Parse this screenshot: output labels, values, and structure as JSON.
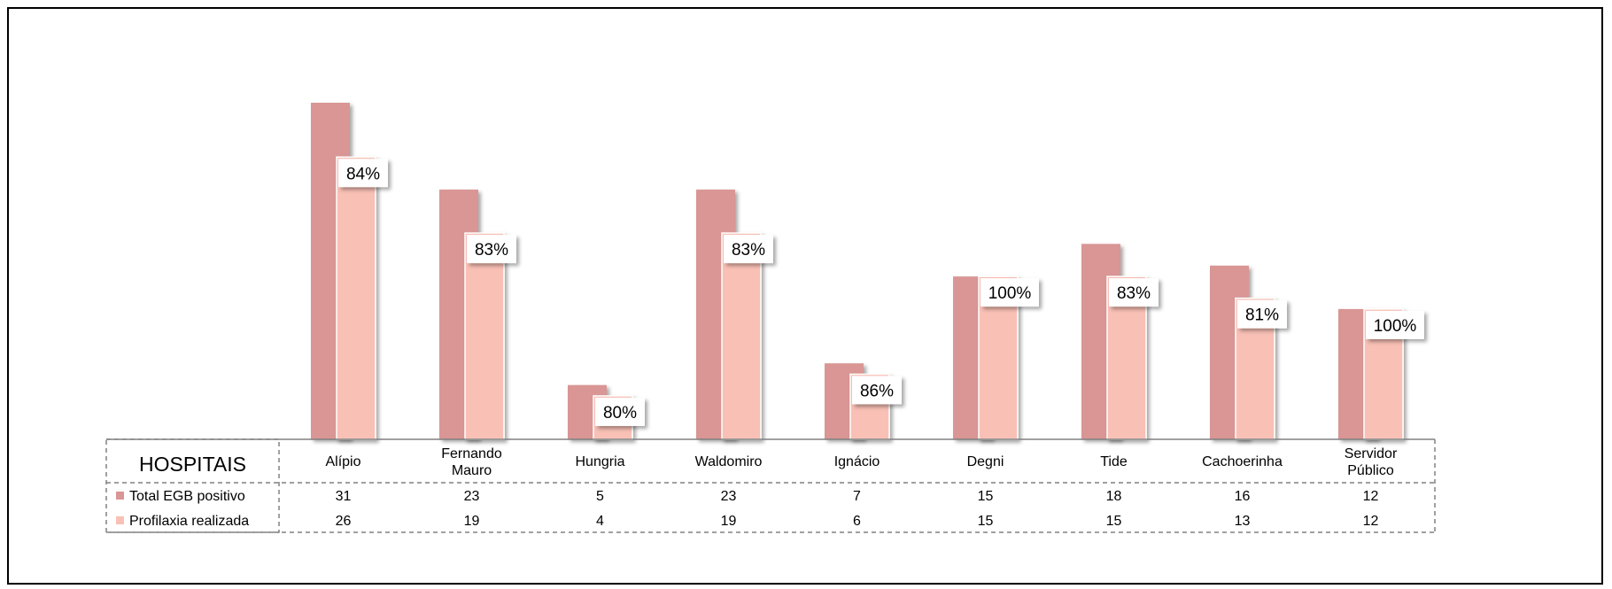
{
  "chart_data": {
    "type": "bar",
    "table_header": "HOSPITAIS",
    "categories": [
      "Alípio",
      "Fernando Mauro",
      "Hungria",
      "Waldomiro",
      "Ignácio",
      "Degni",
      "Tide",
      "Cachoerinha",
      "Servidor Público"
    ],
    "series": [
      {
        "name": "Total EGB positivo",
        "values": [
          31,
          23,
          5,
          23,
          7,
          15,
          18,
          16,
          12
        ],
        "color": "#d99694"
      },
      {
        "name": "Profilaxia realizada",
        "values": [
          26,
          19,
          4,
          19,
          6,
          15,
          15,
          13,
          12
        ],
        "color": "#f9c0b5"
      }
    ],
    "data_labels": [
      "84%",
      "83%",
      "80%",
      "83%",
      "86%",
      "100%",
      "83%",
      "81%",
      "100%"
    ],
    "ylim": [
      0,
      31
    ],
    "grid": false,
    "legend": "data-table"
  }
}
